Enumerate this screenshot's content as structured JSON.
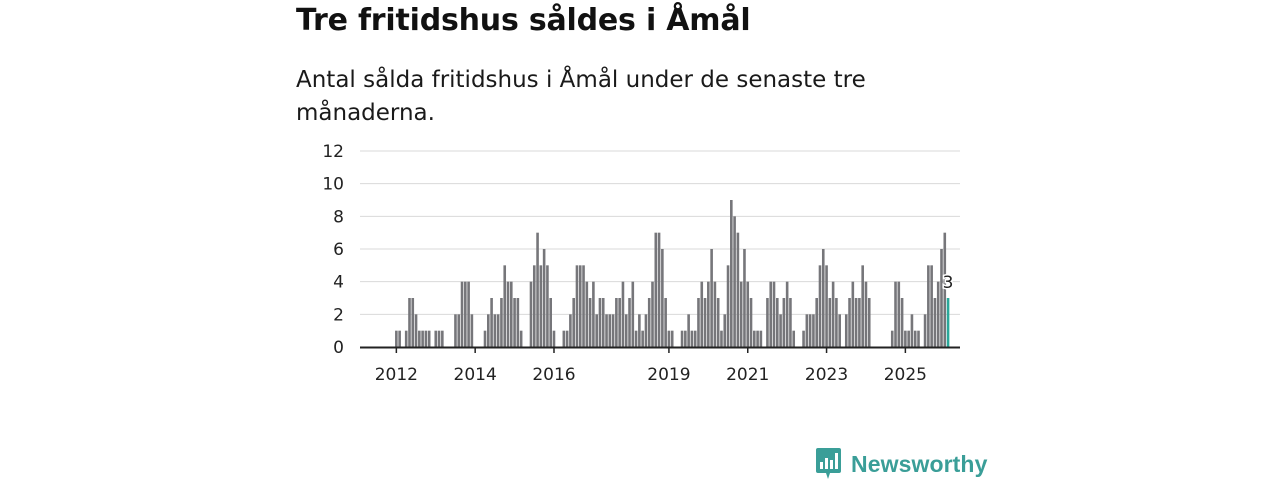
{
  "chart_data": {
    "type": "bar",
    "title": "Tre fritidshus såldes i Åmål",
    "subtitle": "Antal sålda fritidshus i Åmål under de senaste tre månaderna.",
    "xlabel": "",
    "ylabel": "",
    "ylim": [
      0,
      12
    ],
    "yticks": [
      "0",
      "2",
      "4",
      "6",
      "8",
      "10",
      "12"
    ],
    "xticks": [
      {
        "label": "2012",
        "index": 3
      },
      {
        "label": "2014",
        "index": 27
      },
      {
        "label": "2016",
        "index": 51
      },
      {
        "label": "2019",
        "index": 86
      },
      {
        "label": "2021",
        "index": 110
      },
      {
        "label": "2023",
        "index": 134
      },
      {
        "label": "2025",
        "index": 158
      }
    ],
    "grid": true,
    "x_start_month": "2011-09",
    "interval": "monthly, rolling three-month sum",
    "values": [
      null,
      null,
      null,
      1,
      1,
      null,
      1,
      3,
      3,
      2,
      1,
      1,
      1,
      1,
      null,
      1,
      1,
      1,
      null,
      null,
      null,
      2,
      2,
      4,
      4,
      4,
      2,
      null,
      null,
      null,
      1,
      2,
      3,
      2,
      2,
      3,
      5,
      4,
      4,
      3,
      3,
      1,
      null,
      null,
      4,
      5,
      7,
      5,
      6,
      5,
      3,
      1,
      null,
      null,
      1,
      1,
      2,
      3,
      5,
      5,
      5,
      4,
      3,
      4,
      2,
      3,
      3,
      2,
      2,
      2,
      3,
      3,
      4,
      2,
      3,
      4,
      1,
      2,
      1,
      2,
      3,
      4,
      7,
      7,
      6,
      3,
      1,
      1,
      null,
      null,
      1,
      1,
      2,
      1,
      1,
      3,
      4,
      3,
      4,
      6,
      4,
      3,
      1,
      2,
      5,
      9,
      8,
      7,
      4,
      6,
      4,
      3,
      1,
      1,
      1,
      null,
      3,
      4,
      4,
      3,
      2,
      3,
      4,
      3,
      1,
      null,
      null,
      1,
      2,
      2,
      2,
      3,
      5,
      6,
      5,
      3,
      4,
      3,
      2,
      null,
      2,
      3,
      4,
      3,
      3,
      5,
      4,
      3,
      null,
      null,
      null,
      null,
      null,
      null,
      1,
      4,
      4,
      3,
      1,
      1,
      2,
      1,
      1,
      null,
      2,
      5,
      5,
      3,
      4,
      6,
      7,
      3
    ],
    "highlight": {
      "label": "3",
      "color": "#2aa89a"
    },
    "colors": {
      "bar": "#76767a",
      "highlight": "#2aa89a",
      "grid": "#d9d9d9",
      "axis": "#222222"
    }
  },
  "brand": {
    "name": "Newsworthy",
    "color": "#3a9e98"
  }
}
